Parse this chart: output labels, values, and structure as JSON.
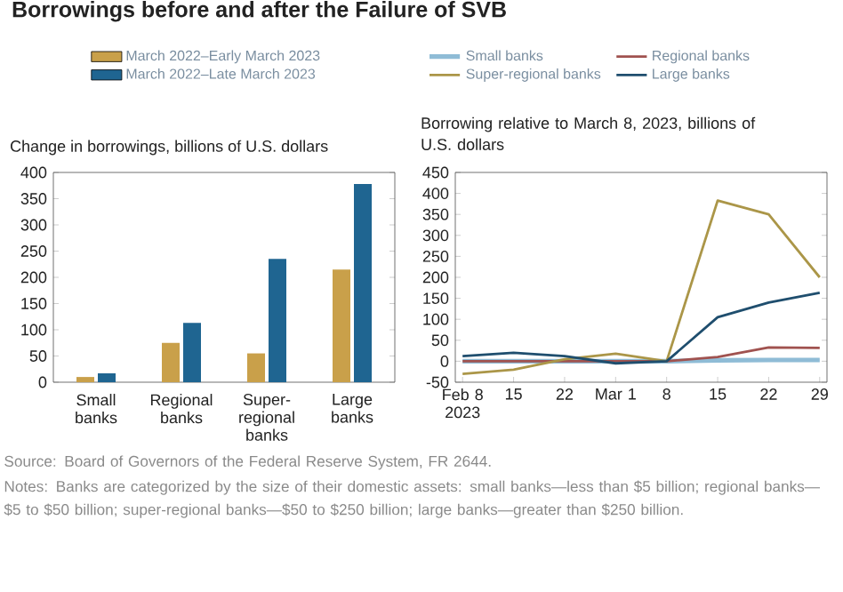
{
  "chart_data": [
    {
      "type": "bar",
      "title": "Borrowings before and after the Failure of SVB",
      "ylabel": "Change in borrowings, billions of U.S. dollars",
      "categories": [
        "Small banks",
        "Regional banks",
        "Super-regional banks",
        "Large banks"
      ],
      "series": [
        {
          "name": "March 2022–Early March 2023",
          "color": "#c9a04a",
          "values": [
            10,
            75,
            55,
            215
          ]
        },
        {
          "name": "March 2022–Late March 2023",
          "color": "#1f6591",
          "values": [
            17,
            113,
            235,
            378
          ]
        }
      ],
      "ylim": [
        0,
        400
      ],
      "yticks": [
        0,
        50,
        100,
        150,
        200,
        250,
        300,
        350,
        400
      ],
      "legend": "top",
      "annotations": [
        "Source: Board of Governors of the Federal Reserve System, FR 2644.",
        "Notes: Banks are categorized by the size of their domestic assets: small banks—less than $5 billion; regional banks—$5 to $50 billion; super-regional banks—$50 to $250 billion; large banks—greater than $250 billion."
      ]
    },
    {
      "type": "line",
      "ylabel": "Borrowing relative to March 8, 2023, billions of U.S. dollars",
      "x": [
        "2023-02-08",
        "2023-02-15",
        "2023-02-22",
        "2023-03-01",
        "2023-03-08",
        "2023-03-15",
        "2023-03-22",
        "2023-03-29"
      ],
      "series": [
        {
          "name": "Small banks",
          "color": "#8fbcd6",
          "values": [
            0,
            0,
            0,
            0,
            0,
            2,
            3,
            3
          ]
        },
        {
          "name": "Regional banks",
          "color": "#a0524f",
          "values": [
            0,
            0,
            0,
            0,
            0,
            10,
            33,
            32
          ]
        },
        {
          "name": "Super-regional banks",
          "color": "#ab9648",
          "values": [
            -30,
            -20,
            5,
            18,
            0,
            383,
            350,
            200
          ]
        },
        {
          "name": "Large banks",
          "color": "#1f4e6e",
          "values": [
            12,
            20,
            12,
            -5,
            0,
            105,
            140,
            163
          ]
        }
      ],
      "xlim": [
        "2023-02-07",
        "2023-03-30"
      ],
      "xticks": [
        {
          "value": "2023-02-08",
          "label": "Feb 8 2023"
        },
        {
          "value": "2023-02-15",
          "label": "15"
        },
        {
          "value": "2023-02-22",
          "label": "22"
        },
        {
          "value": "2023-03-01",
          "label": "Mar 1"
        },
        {
          "value": "2023-03-08",
          "label": "8"
        },
        {
          "value": "2023-03-15",
          "label": "15"
        },
        {
          "value": "2023-03-22",
          "label": "22"
        },
        {
          "value": "2023-03-29",
          "label": "29"
        }
      ],
      "ylim": [
        -50,
        450
      ],
      "yticks": [
        -50,
        0,
        50,
        100,
        150,
        200,
        250,
        300,
        350,
        400,
        450
      ],
      "legend": "top"
    }
  ]
}
